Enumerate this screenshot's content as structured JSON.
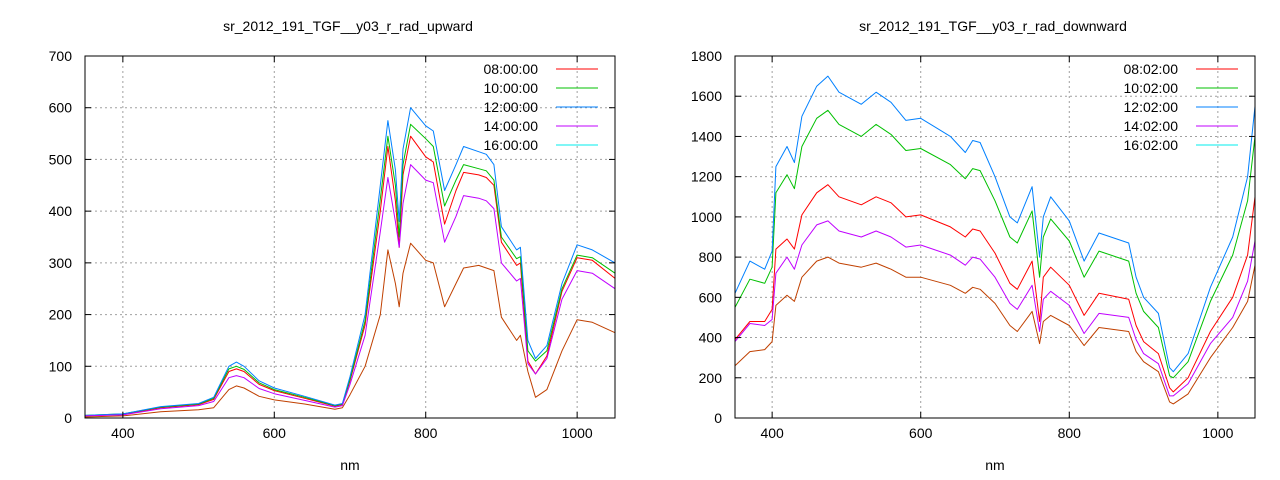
{
  "chart_data": [
    {
      "type": "line",
      "title": "sr_2012_191_TGF__y03_r_rad_upward",
      "xlabel": "nm",
      "ylabel": "",
      "xlim": [
        350,
        1050
      ],
      "ylim": [
        0,
        700
      ],
      "xticks": [
        400,
        600,
        800,
        1000
      ],
      "yticks": [
        0,
        100,
        200,
        300,
        400,
        500,
        600,
        700
      ],
      "grid": true,
      "legend_position": "top-right",
      "x": [
        350,
        400,
        450,
        500,
        520,
        540,
        550,
        560,
        580,
        600,
        640,
        680,
        690,
        700,
        720,
        740,
        750,
        760,
        765,
        770,
        780,
        800,
        810,
        825,
        840,
        850,
        870,
        880,
        890,
        900,
        920,
        925,
        935,
        945,
        960,
        980,
        1000,
        1020,
        1050
      ],
      "series": [
        {
          "name": "08:00:00",
          "color": "#ff0000",
          "legend_color": "#ff0000",
          "values": [
            4,
            7,
            20,
            26,
            36,
            90,
            95,
            90,
            65,
            53,
            38,
            23,
            26,
            72,
            180,
            400,
            525,
            420,
            330,
            470,
            545,
            505,
            495,
            375,
            440,
            475,
            470,
            465,
            450,
            340,
            295,
            300,
            110,
            85,
            120,
            245,
            310,
            305,
            270
          ]
        },
        {
          "name": "10:00:00",
          "color": "#00c000",
          "legend_color": "#00c000",
          "values": [
            5,
            8,
            21,
            27,
            38,
            95,
            100,
            94,
            68,
            55,
            40,
            24,
            27,
            75,
            188,
            423,
            545,
            450,
            350,
            490,
            568,
            540,
            525,
            410,
            460,
            490,
            482,
            478,
            460,
            350,
            308,
            312,
            130,
            110,
            130,
            250,
            315,
            310,
            280
          ]
        },
        {
          "name": "12:00:00",
          "color": "#0080ff",
          "legend_color": "#0080ff",
          "values": [
            5,
            8,
            22,
            28,
            40,
            100,
            108,
            100,
            72,
            58,
            42,
            25,
            28,
            80,
            200,
            450,
            575,
            480,
            380,
            520,
            600,
            565,
            555,
            440,
            490,
            525,
            515,
            510,
            490,
            370,
            325,
            330,
            150,
            115,
            140,
            260,
            335,
            325,
            300
          ]
        },
        {
          "name": "14:00:00",
          "color": "#c000ff",
          "legend_color": "#c000ff",
          "values": [
            4,
            6,
            18,
            24,
            32,
            78,
            82,
            78,
            57,
            47,
            34,
            21,
            24,
            65,
            160,
            360,
            465,
            380,
            330,
            415,
            490,
            460,
            455,
            340,
            390,
            430,
            425,
            420,
            405,
            300,
            265,
            270,
            105,
            85,
            115,
            230,
            285,
            280,
            250
          ]
        },
        {
          "name": "16:00:00",
          "color": "#c04000",
          "legend_color": "#00eeee",
          "values": [
            2,
            4,
            12,
            16,
            20,
            55,
            62,
            58,
            42,
            35,
            27,
            17,
            20,
            45,
            100,
            200,
            325,
            260,
            215,
            280,
            338,
            305,
            300,
            215,
            260,
            290,
            295,
            290,
            285,
            195,
            150,
            160,
            90,
            40,
            55,
            130,
            190,
            185,
            165
          ]
        }
      ]
    },
    {
      "type": "line",
      "title": "sr_2012_191_TGF__y03_r_rad_downward",
      "xlabel": "nm",
      "ylabel": "",
      "xlim": [
        350,
        1050
      ],
      "ylim": [
        0,
        1800
      ],
      "xticks": [
        400,
        600,
        800,
        1000
      ],
      "yticks": [
        0,
        200,
        400,
        600,
        800,
        1000,
        1200,
        1400,
        1600,
        1800
      ],
      "grid": true,
      "legend_position": "top-right",
      "x": [
        350,
        370,
        390,
        400,
        405,
        420,
        430,
        440,
        460,
        475,
        490,
        520,
        540,
        560,
        580,
        600,
        640,
        660,
        670,
        680,
        700,
        720,
        730,
        750,
        760,
        765,
        775,
        800,
        820,
        840,
        880,
        890,
        900,
        920,
        935,
        940,
        960,
        990,
        1020,
        1040,
        1050
      ],
      "series": [
        {
          "name": "08:02:00",
          "color": "#ff0000",
          "legend_color": "#ff0000",
          "values": [
            390,
            480,
            480,
            540,
            840,
            890,
            840,
            1010,
            1120,
            1160,
            1100,
            1060,
            1100,
            1070,
            1000,
            1010,
            950,
            900,
            940,
            930,
            820,
            670,
            640,
            780,
            480,
            700,
            750,
            660,
            510,
            620,
            590,
            460,
            380,
            320,
            150,
            130,
            200,
            430,
            600,
            810,
            1100
          ]
        },
        {
          "name": "10:02:00",
          "color": "#00c000",
          "legend_color": "#00c000",
          "values": [
            550,
            690,
            670,
            750,
            1120,
            1210,
            1140,
            1350,
            1490,
            1530,
            1460,
            1400,
            1460,
            1410,
            1330,
            1340,
            1260,
            1190,
            1240,
            1230,
            1080,
            900,
            870,
            1030,
            700,
            900,
            990,
            880,
            700,
            830,
            780,
            620,
            530,
            450,
            210,
            200,
            280,
            580,
            810,
            1080,
            1400
          ]
        },
        {
          "name": "12:02:00",
          "color": "#0080ff",
          "legend_color": "#0080ff",
          "values": [
            620,
            780,
            740,
            830,
            1250,
            1350,
            1270,
            1500,
            1650,
            1700,
            1620,
            1560,
            1620,
            1570,
            1480,
            1490,
            1400,
            1320,
            1380,
            1370,
            1200,
            1000,
            970,
            1150,
            800,
            1000,
            1100,
            980,
            780,
            920,
            870,
            700,
            600,
            520,
            250,
            230,
            320,
            650,
            900,
            1200,
            1550
          ]
        },
        {
          "name": "14:02:00",
          "color": "#c000ff",
          "legend_color": "#c000ff",
          "values": [
            380,
            470,
            460,
            490,
            720,
            800,
            740,
            860,
            960,
            980,
            930,
            900,
            930,
            900,
            850,
            860,
            810,
            760,
            800,
            790,
            700,
            570,
            540,
            660,
            430,
            590,
            630,
            560,
            420,
            520,
            500,
            390,
            320,
            270,
            110,
            110,
            170,
            370,
            500,
            680,
            880
          ]
        },
        {
          "name": "16:02:00",
          "color": "#c04000",
          "legend_color": "#00eeee",
          "values": [
            260,
            330,
            340,
            380,
            560,
            610,
            580,
            700,
            780,
            800,
            770,
            750,
            770,
            740,
            700,
            700,
            660,
            620,
            650,
            640,
            570,
            460,
            430,
            530,
            370,
            480,
            510,
            460,
            360,
            450,
            430,
            330,
            280,
            230,
            80,
            70,
            120,
            300,
            450,
            580,
            760
          ]
        }
      ]
    }
  ]
}
